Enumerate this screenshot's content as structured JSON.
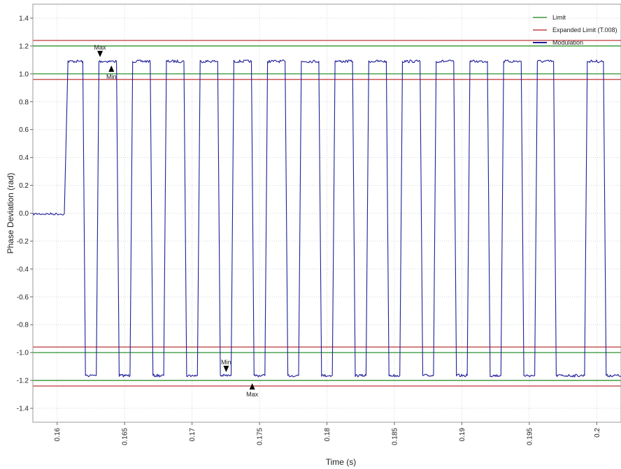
{
  "chart_data": {
    "type": "line",
    "title": "",
    "xlabel": "Time (s)",
    "ylabel": "Phase Deviation (rad)",
    "xlim": [
      0.1582,
      0.2018
    ],
    "ylim": [
      -1.5,
      1.5
    ],
    "xticks": [
      0.16,
      0.165,
      0.17,
      0.175,
      0.18,
      0.185,
      0.19,
      0.195,
      0.2
    ],
    "xtick_labels": [
      "0.16",
      "0.165",
      "0.17",
      "0.175",
      "0.18",
      "0.185",
      "0.19",
      "0.195",
      "0.2"
    ],
    "yticks": [
      1.4,
      1.2,
      1.0,
      0.8,
      0.6,
      0.4,
      0.2,
      0.0,
      -0.2,
      -0.4,
      -0.6,
      -0.8,
      -1.0,
      -1.2,
      -1.4
    ],
    "ytick_labels": [
      "1.4",
      "1.2",
      "1.0",
      "0.8",
      "0.6",
      "0.4",
      "0.2",
      "0.0",
      "-0.2",
      "-0.4",
      "-0.6",
      "-0.8",
      "-1.0",
      "-1.2",
      "-1.4"
    ],
    "grid": true,
    "legend_position": "top-right",
    "series": [
      {
        "name": "Limit",
        "kind": "hline",
        "color": "#1a8a1a",
        "values": [
          1.2,
          1.0,
          -1.0,
          -1.2
        ]
      },
      {
        "name": "Expanded Limit (T.008)",
        "kind": "hline",
        "color": "#b52020",
        "values": [
          1.24,
          0.96,
          -0.96,
          -1.24
        ]
      },
      {
        "name": "Modulation",
        "kind": "square-wave",
        "color": "#1f1f9a",
        "baseline": {
          "x_start": 0.1582,
          "x_end": 0.1606,
          "y": -0.005
        },
        "high_level": 1.09,
        "low_level": -1.165,
        "high_segments": [
          [
            0.1608,
            0.1619
          ],
          [
            0.1631,
            0.1644
          ],
          [
            0.1656,
            0.1669
          ],
          [
            0.1681,
            0.1694
          ],
          [
            0.1706,
            0.1719
          ],
          [
            0.1731,
            0.1744
          ],
          [
            0.1756,
            0.1769
          ],
          [
            0.1781,
            0.1794
          ],
          [
            0.1806,
            0.1819
          ],
          [
            0.1831,
            0.1844
          ],
          [
            0.1856,
            0.1869
          ],
          [
            0.1881,
            0.1894
          ],
          [
            0.1906,
            0.1919
          ],
          [
            0.1931,
            0.1944
          ],
          [
            0.1956,
            0.1968
          ],
          [
            0.1993,
            0.2005
          ]
        ],
        "low_segments": [
          [
            0.1621,
            0.1629
          ],
          [
            0.1646,
            0.1654
          ],
          [
            0.1671,
            0.1679
          ],
          [
            0.1696,
            0.1704
          ],
          [
            0.1721,
            0.1729
          ],
          [
            0.1746,
            0.1754
          ],
          [
            0.1771,
            0.1779
          ],
          [
            0.1796,
            0.1804
          ],
          [
            0.1821,
            0.1829
          ],
          [
            0.1846,
            0.1854
          ],
          [
            0.1871,
            0.1879
          ],
          [
            0.1896,
            0.1904
          ],
          [
            0.1921,
            0.1929
          ],
          [
            0.1946,
            0.1954
          ],
          [
            0.197,
            0.1991
          ],
          [
            0.2007,
            0.2018
          ]
        ]
      }
    ],
    "legend": [
      {
        "label": "Limit",
        "color": "#1a8a1a"
      },
      {
        "label": "Expanded Limit (T.008)",
        "color": "#b52020"
      },
      {
        "label": "Modulation",
        "color": "#1f1f9a"
      }
    ],
    "markers": [
      {
        "label": "Max",
        "x": 0.16318,
        "y": 1.12,
        "direction": "down",
        "label_side": "above"
      },
      {
        "label": "Min",
        "x": 0.16402,
        "y": 1.06,
        "direction": "up",
        "label_side": "below"
      },
      {
        "label": "Min",
        "x": 0.17253,
        "y": -1.14,
        "direction": "down",
        "label_side": "above"
      },
      {
        "label": "Max",
        "x": 0.17446,
        "y": -1.22,
        "direction": "up",
        "label_side": "below"
      }
    ]
  }
}
